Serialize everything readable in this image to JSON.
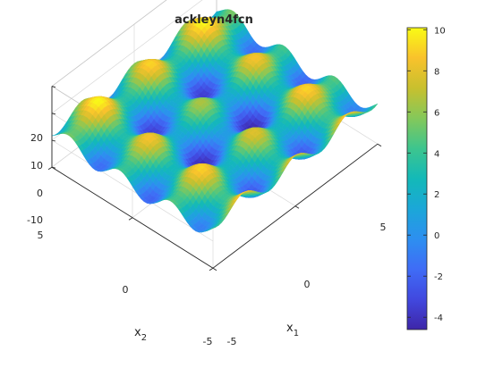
{
  "chart_data": {
    "type": "surface",
    "title": "ackleyn4fcn",
    "function": "ackleyn4fcn",
    "x1_label": "x",
    "x1_sub": "1",
    "x2_label": "x",
    "x2_sub": "2",
    "x1_range": [
      -5,
      5
    ],
    "x2_range": [
      -5,
      5
    ],
    "z_range": [
      -10,
      20
    ],
    "x1_ticks": [
      "-5",
      "0",
      "5"
    ],
    "x2_ticks": [
      "5",
      "0",
      "-5"
    ],
    "z_ticks": [
      "-10",
      "0",
      "10",
      "20"
    ],
    "colorbar": {
      "range": [
        -4.6,
        10.1
      ],
      "ticks": [
        "10",
        "8",
        "6",
        "4",
        "2",
        "0",
        "-2",
        "-4"
      ],
      "colormap": "parula"
    },
    "grid": true,
    "view": "isometric"
  }
}
